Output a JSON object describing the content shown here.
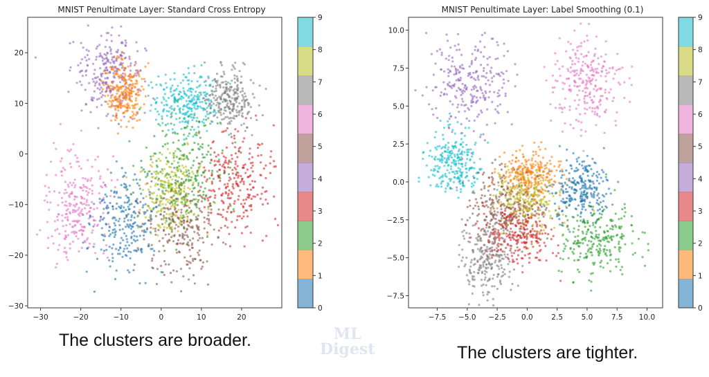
{
  "watermark": {
    "line1": "ML",
    "line2": "Digest"
  },
  "chart_data": [
    {
      "type": "scatter",
      "title": "MNIST Penultimate Layer: Standard Cross Entropy",
      "caption": "The clusters are broader.",
      "xlim": [
        -33.2,
        30.0
      ],
      "ylim": [
        -30.4,
        27.0
      ],
      "xticks": [
        -30,
        -20,
        -10,
        0,
        10,
        20
      ],
      "yticks": [
        -30,
        -20,
        -10,
        0,
        10,
        20
      ],
      "grid": false,
      "colorbar": {
        "ticks": [
          0,
          1,
          2,
          3,
          4,
          5,
          6,
          7,
          8,
          9
        ],
        "colormap": "tab10"
      },
      "points_per_class": 260,
      "clusters": [
        {
          "label": 0,
          "center": [
            -8,
            -13
          ],
          "spread": [
            4.5,
            5
          ]
        },
        {
          "label": 1,
          "center": [
            -9,
            12
          ],
          "spread": [
            2.3,
            3
          ]
        },
        {
          "label": 2,
          "center": [
            6,
            -3
          ],
          "spread": [
            5,
            6
          ]
        },
        {
          "label": 3,
          "center": [
            18,
            -5
          ],
          "spread": [
            4,
            5
          ]
        },
        {
          "label": 4,
          "center": [
            -13,
            16
          ],
          "spread": [
            3.8,
            4
          ]
        },
        {
          "label": 5,
          "center": [
            5,
            -15
          ],
          "spread": [
            5,
            5
          ]
        },
        {
          "label": 6,
          "center": [
            -21,
            -10
          ],
          "spread": [
            4,
            5
          ]
        },
        {
          "label": 7,
          "center": [
            17,
            11
          ],
          "spread": [
            3,
            2.5
          ]
        },
        {
          "label": 8,
          "center": [
            2,
            -8
          ],
          "spread": [
            4,
            4
          ]
        },
        {
          "label": 9,
          "center": [
            6,
            10
          ],
          "spread": [
            4,
            3
          ]
        }
      ]
    },
    {
      "type": "scatter",
      "title": "MNIST Penultimate Layer: Label Smoothing (0.1)",
      "caption": "The clusters are tighter.",
      "xlim": [
        -9.9,
        11.3
      ],
      "ylim": [
        -8.3,
        10.85
      ],
      "xticks": [
        -7.5,
        -5.0,
        -2.5,
        0.0,
        2.5,
        5.0,
        7.5,
        10.0
      ],
      "yticks": [
        -7.5,
        -5.0,
        -2.5,
        0.0,
        2.5,
        5.0,
        7.5,
        10.0
      ],
      "grid": false,
      "colorbar": {
        "ticks": [
          0,
          1,
          2,
          3,
          4,
          5,
          6,
          7,
          8,
          9
        ],
        "colormap": "tab10"
      },
      "points_per_class": 260,
      "clusters": [
        {
          "label": 0,
          "center": [
            4.5,
            -0.5
          ],
          "spread": [
            1.2,
            1.0
          ]
        },
        {
          "label": 1,
          "center": [
            0.2,
            0.4
          ],
          "spread": [
            1.2,
            0.8
          ]
        },
        {
          "label": 2,
          "center": [
            6,
            -3.8
          ],
          "spread": [
            1.6,
            1.2
          ]
        },
        {
          "label": 3,
          "center": [
            -0.8,
            -3.5
          ],
          "spread": [
            1.4,
            1.0
          ]
        },
        {
          "label": 4,
          "center": [
            -4.8,
            6.5
          ],
          "spread": [
            1.8,
            1.5
          ]
        },
        {
          "label": 5,
          "center": [
            -2,
            -1.5
          ],
          "spread": [
            1.5,
            1.2
          ]
        },
        {
          "label": 6,
          "center": [
            5,
            6.5
          ],
          "spread": [
            1.5,
            1.5
          ]
        },
        {
          "label": 7,
          "center": [
            -3.5,
            -5
          ],
          "spread": [
            1.2,
            1.3
          ]
        },
        {
          "label": 8,
          "center": [
            0,
            -1
          ],
          "spread": [
            1.3,
            1.0
          ]
        },
        {
          "label": 9,
          "center": [
            -6,
            1.2
          ],
          "spread": [
            1.1,
            1.0
          ]
        }
      ]
    }
  ],
  "colors": [
    "#1f77b4",
    "#ff7f0e",
    "#2ca02c",
    "#d62728",
    "#9467bd",
    "#8c564b",
    "#e377c2",
    "#7f7f7f",
    "#bcbd22",
    "#17becf"
  ]
}
